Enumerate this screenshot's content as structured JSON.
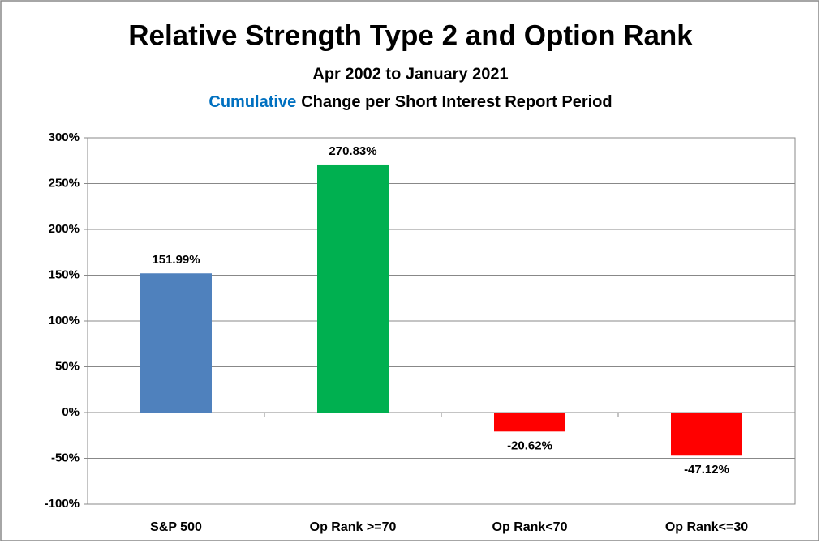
{
  "chart_data": {
    "type": "bar",
    "title": "Relative Strength Type 2 and Option Rank",
    "subtitle": "Apr 2002 to January 2021",
    "subtitle2_highlight": "Cumulative",
    "subtitle2_rest": "Change per Short Interest Report Period",
    "categories": [
      "S&P 500",
      "Op Rank >=70",
      "Op Rank<70",
      "Op Rank<=30"
    ],
    "values": [
      151.99,
      270.83,
      -20.62,
      -47.12
    ],
    "value_labels": [
      "151.99%",
      "270.83%",
      "-20.62%",
      "-47.12%"
    ],
    "colors": [
      "#4f81bd",
      "#00b050",
      "#ff0000",
      "#ff0000"
    ],
    "ylim": [
      -100,
      300
    ],
    "yticks": [
      {
        "value": -100,
        "label": "-100%"
      },
      {
        "value": -50,
        "label": "-50%"
      },
      {
        "value": 0,
        "label": "0%"
      },
      {
        "value": 50,
        "label": "50%"
      },
      {
        "value": 100,
        "label": "100%"
      },
      {
        "value": 150,
        "label": "150%"
      },
      {
        "value": 200,
        "label": "200%"
      },
      {
        "value": 250,
        "label": "250%"
      },
      {
        "value": 300,
        "label": "300%"
      }
    ],
    "grid": true
  }
}
